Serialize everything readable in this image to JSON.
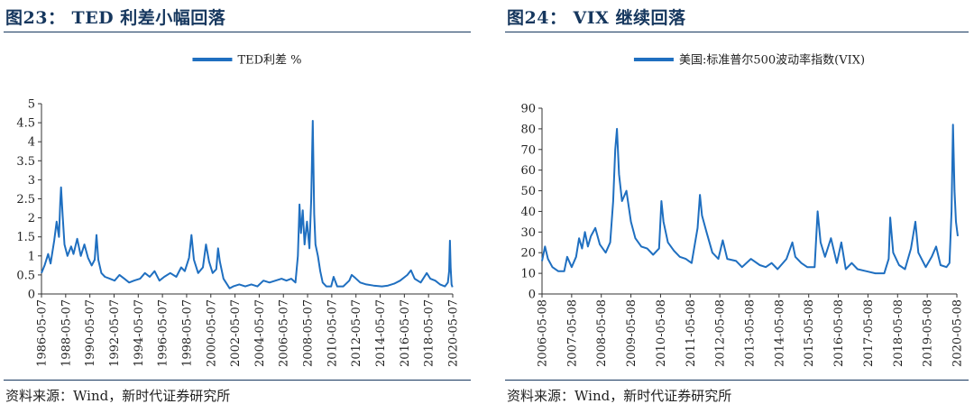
{
  "left": {
    "title": "图23：  TED 利差小幅回落",
    "source": "资料来源：Wind，新时代证券研究所"
  },
  "right": {
    "title": "图24：  VIX 继续回落",
    "source": "资料来源：Wind，新时代证券研究所"
  },
  "chart_data": [
    {
      "type": "line",
      "title": "",
      "xlabel": "",
      "ylabel": "",
      "legend": "top-center",
      "series": [
        {
          "name": "TED利差 %",
          "color": "#1f6fc0",
          "points": [
            [
              1986.35,
              0.55
            ],
            [
              1986.6,
              0.75
            ],
            [
              1986.9,
              1.05
            ],
            [
              1987.1,
              0.8
            ],
            [
              1987.4,
              1.4
            ],
            [
              1987.6,
              1.9
            ],
            [
              1987.8,
              1.5
            ],
            [
              1987.9,
              2.4
            ],
            [
              1987.97,
              2.8
            ],
            [
              1988.1,
              2.05
            ],
            [
              1988.25,
              1.3
            ],
            [
              1988.5,
              1.0
            ],
            [
              1988.8,
              1.25
            ],
            [
              1989.0,
              1.05
            ],
            [
              1989.3,
              1.45
            ],
            [
              1989.6,
              1.0
            ],
            [
              1989.9,
              1.3
            ],
            [
              1990.2,
              0.95
            ],
            [
              1990.5,
              0.75
            ],
            [
              1990.75,
              0.9
            ],
            [
              1990.9,
              1.55
            ],
            [
              1991.05,
              0.9
            ],
            [
              1991.3,
              0.55
            ],
            [
              1991.6,
              0.45
            ],
            [
              1992.0,
              0.4
            ],
            [
              1992.4,
              0.35
            ],
            [
              1992.8,
              0.5
            ],
            [
              1993.2,
              0.4
            ],
            [
              1993.6,
              0.3
            ],
            [
              1994.0,
              0.35
            ],
            [
              1994.5,
              0.4
            ],
            [
              1994.9,
              0.55
            ],
            [
              1995.3,
              0.45
            ],
            [
              1995.7,
              0.6
            ],
            [
              1996.1,
              0.35
            ],
            [
              1996.5,
              0.45
            ],
            [
              1997.0,
              0.55
            ],
            [
              1997.5,
              0.45
            ],
            [
              1997.9,
              0.7
            ],
            [
              1998.2,
              0.6
            ],
            [
              1998.55,
              0.95
            ],
            [
              1998.75,
              1.55
            ],
            [
              1998.95,
              0.9
            ],
            [
              1999.3,
              0.55
            ],
            [
              1999.7,
              0.7
            ],
            [
              1999.95,
              1.3
            ],
            [
              2000.2,
              0.85
            ],
            [
              2000.5,
              0.55
            ],
            [
              2000.8,
              0.65
            ],
            [
              2000.95,
              1.2
            ],
            [
              2001.1,
              0.85
            ],
            [
              2001.4,
              0.4
            ],
            [
              2001.7,
              0.25
            ],
            [
              2001.9,
              0.15
            ],
            [
              2002.2,
              0.2
            ],
            [
              2002.7,
              0.25
            ],
            [
              2003.2,
              0.2
            ],
            [
              2003.7,
              0.25
            ],
            [
              2004.2,
              0.2
            ],
            [
              2004.7,
              0.35
            ],
            [
              2005.2,
              0.3
            ],
            [
              2005.7,
              0.35
            ],
            [
              2006.2,
              0.4
            ],
            [
              2006.6,
              0.35
            ],
            [
              2007.0,
              0.4
            ],
            [
              2007.35,
              0.3
            ],
            [
              2007.55,
              1.0
            ],
            [
              2007.68,
              2.35
            ],
            [
              2007.8,
              1.6
            ],
            [
              2007.95,
              2.2
            ],
            [
              2008.1,
              1.3
            ],
            [
              2008.3,
              1.9
            ],
            [
              2008.5,
              1.2
            ],
            [
              2008.65,
              2.5
            ],
            [
              2008.78,
              4.55
            ],
            [
              2008.9,
              2.1
            ],
            [
              2009.0,
              1.3
            ],
            [
              2009.2,
              1.0
            ],
            [
              2009.4,
              0.6
            ],
            [
              2009.6,
              0.3
            ],
            [
              2009.9,
              0.2
            ],
            [
              2010.3,
              0.2
            ],
            [
              2010.5,
              0.45
            ],
            [
              2010.8,
              0.2
            ],
            [
              2011.3,
              0.2
            ],
            [
              2011.8,
              0.35
            ],
            [
              2012.0,
              0.5
            ],
            [
              2012.3,
              0.42
            ],
            [
              2012.7,
              0.3
            ],
            [
              2013.2,
              0.25
            ],
            [
              2013.8,
              0.22
            ],
            [
              2014.5,
              0.2
            ],
            [
              2015.0,
              0.22
            ],
            [
              2015.5,
              0.27
            ],
            [
              2016.0,
              0.35
            ],
            [
              2016.6,
              0.5
            ],
            [
              2016.9,
              0.62
            ],
            [
              2017.2,
              0.4
            ],
            [
              2017.7,
              0.3
            ],
            [
              2018.2,
              0.55
            ],
            [
              2018.5,
              0.4
            ],
            [
              2018.9,
              0.35
            ],
            [
              2019.3,
              0.25
            ],
            [
              2019.7,
              0.2
            ],
            [
              2019.95,
              0.3
            ],
            [
              2020.05,
              0.6
            ],
            [
              2020.12,
              1.4
            ],
            [
              2020.18,
              0.7
            ],
            [
              2020.25,
              0.25
            ],
            [
              2020.33,
              0.18
            ]
          ]
        }
      ],
      "x_ticks": [
        "1986-05-07",
        "1988-05-07",
        "1990-05-07",
        "1992-05-07",
        "1994-05-07",
        "1996-05-07",
        "1998-05-07",
        "2000-05-07",
        "2002-05-07",
        "2004-05-07",
        "2006-05-07",
        "2008-05-07",
        "2010-05-07",
        "2012-05-07",
        "2014-05-07",
        "2016-05-07",
        "2018-05-07",
        "2020-05-07"
      ],
      "xlim": [
        1986.35,
        2020.35
      ],
      "y_ticks": [
        "0",
        "0.5",
        "1",
        "1.5",
        "2",
        "2.5",
        "3",
        "3.5",
        "4",
        "4.5",
        "5"
      ],
      "ylim": [
        0,
        5
      ]
    },
    {
      "type": "line",
      "title": "",
      "xlabel": "",
      "ylabel": "",
      "legend": "top-center",
      "series": [
        {
          "name": "美国:标准普尔500波动率指数(VIX)",
          "color": "#1f6fc0",
          "points": [
            [
              2006.35,
              16
            ],
            [
              2006.45,
              23
            ],
            [
              2006.55,
              17
            ],
            [
              2006.7,
              13
            ],
            [
              2006.9,
              11
            ],
            [
              2007.1,
              11
            ],
            [
              2007.2,
              18
            ],
            [
              2007.35,
              13
            ],
            [
              2007.5,
              18
            ],
            [
              2007.6,
              27
            ],
            [
              2007.7,
              22
            ],
            [
              2007.8,
              30
            ],
            [
              2007.9,
              23
            ],
            [
              2008.0,
              28
            ],
            [
              2008.15,
              32
            ],
            [
              2008.3,
              24
            ],
            [
              2008.5,
              20
            ],
            [
              2008.65,
              25
            ],
            [
              2008.75,
              45
            ],
            [
              2008.82,
              70
            ],
            [
              2008.88,
              80
            ],
            [
              2008.95,
              58
            ],
            [
              2009.05,
              45
            ],
            [
              2009.2,
              50
            ],
            [
              2009.35,
              35
            ],
            [
              2009.5,
              27
            ],
            [
              2009.7,
              23
            ],
            [
              2009.9,
              22
            ],
            [
              2010.1,
              19
            ],
            [
              2010.3,
              22
            ],
            [
              2010.38,
              45
            ],
            [
              2010.45,
              35
            ],
            [
              2010.6,
              25
            ],
            [
              2010.8,
              21
            ],
            [
              2011.0,
              18
            ],
            [
              2011.2,
              17
            ],
            [
              2011.4,
              15
            ],
            [
              2011.6,
              32
            ],
            [
              2011.68,
              48
            ],
            [
              2011.75,
              38
            ],
            [
              2011.9,
              30
            ],
            [
              2012.1,
              20
            ],
            [
              2012.3,
              17
            ],
            [
              2012.45,
              26
            ],
            [
              2012.6,
              17
            ],
            [
              2012.9,
              16
            ],
            [
              2013.1,
              13
            ],
            [
              2013.4,
              17
            ],
            [
              2013.7,
              14
            ],
            [
              2013.9,
              13
            ],
            [
              2014.1,
              15
            ],
            [
              2014.3,
              12
            ],
            [
              2014.6,
              17
            ],
            [
              2014.8,
              25
            ],
            [
              2014.9,
              18
            ],
            [
              2015.1,
              15
            ],
            [
              2015.3,
              13
            ],
            [
              2015.55,
              13
            ],
            [
              2015.65,
              40
            ],
            [
              2015.75,
              25
            ],
            [
              2015.9,
              18
            ],
            [
              2016.1,
              27
            ],
            [
              2016.3,
              15
            ],
            [
              2016.45,
              25
            ],
            [
              2016.6,
              12
            ],
            [
              2016.8,
              15
            ],
            [
              2017.0,
              12
            ],
            [
              2017.3,
              11
            ],
            [
              2017.6,
              10
            ],
            [
              2017.9,
              10
            ],
            [
              2018.05,
              17
            ],
            [
              2018.1,
              37
            ],
            [
              2018.2,
              20
            ],
            [
              2018.4,
              14
            ],
            [
              2018.6,
              12
            ],
            [
              2018.8,
              22
            ],
            [
              2018.95,
              35
            ],
            [
              2019.05,
              20
            ],
            [
              2019.3,
              13
            ],
            [
              2019.5,
              18
            ],
            [
              2019.65,
              23
            ],
            [
              2019.8,
              14
            ],
            [
              2020.0,
              13
            ],
            [
              2020.1,
              15
            ],
            [
              2020.17,
              40
            ],
            [
              2020.22,
              82
            ],
            [
              2020.27,
              50
            ],
            [
              2020.32,
              35
            ],
            [
              2020.38,
              28
            ]
          ]
        }
      ],
      "x_ticks": [
        "2006-05-08",
        "2007-05-08",
        "2008-05-08",
        "2009-05-08",
        "2010-05-08",
        "2011-05-08",
        "2012-05-08",
        "2013-05-08",
        "2014-05-08",
        "2015-05-08",
        "2016-05-08",
        "2017-05-08",
        "2018-05-08",
        "2019-05-08",
        "2020-05-08"
      ],
      "xlim": [
        2006.35,
        2020.35
      ],
      "y_ticks": [
        "0",
        "10",
        "20",
        "30",
        "40",
        "50",
        "60",
        "70",
        "80",
        "90"
      ],
      "ylim": [
        0,
        90
      ]
    }
  ]
}
